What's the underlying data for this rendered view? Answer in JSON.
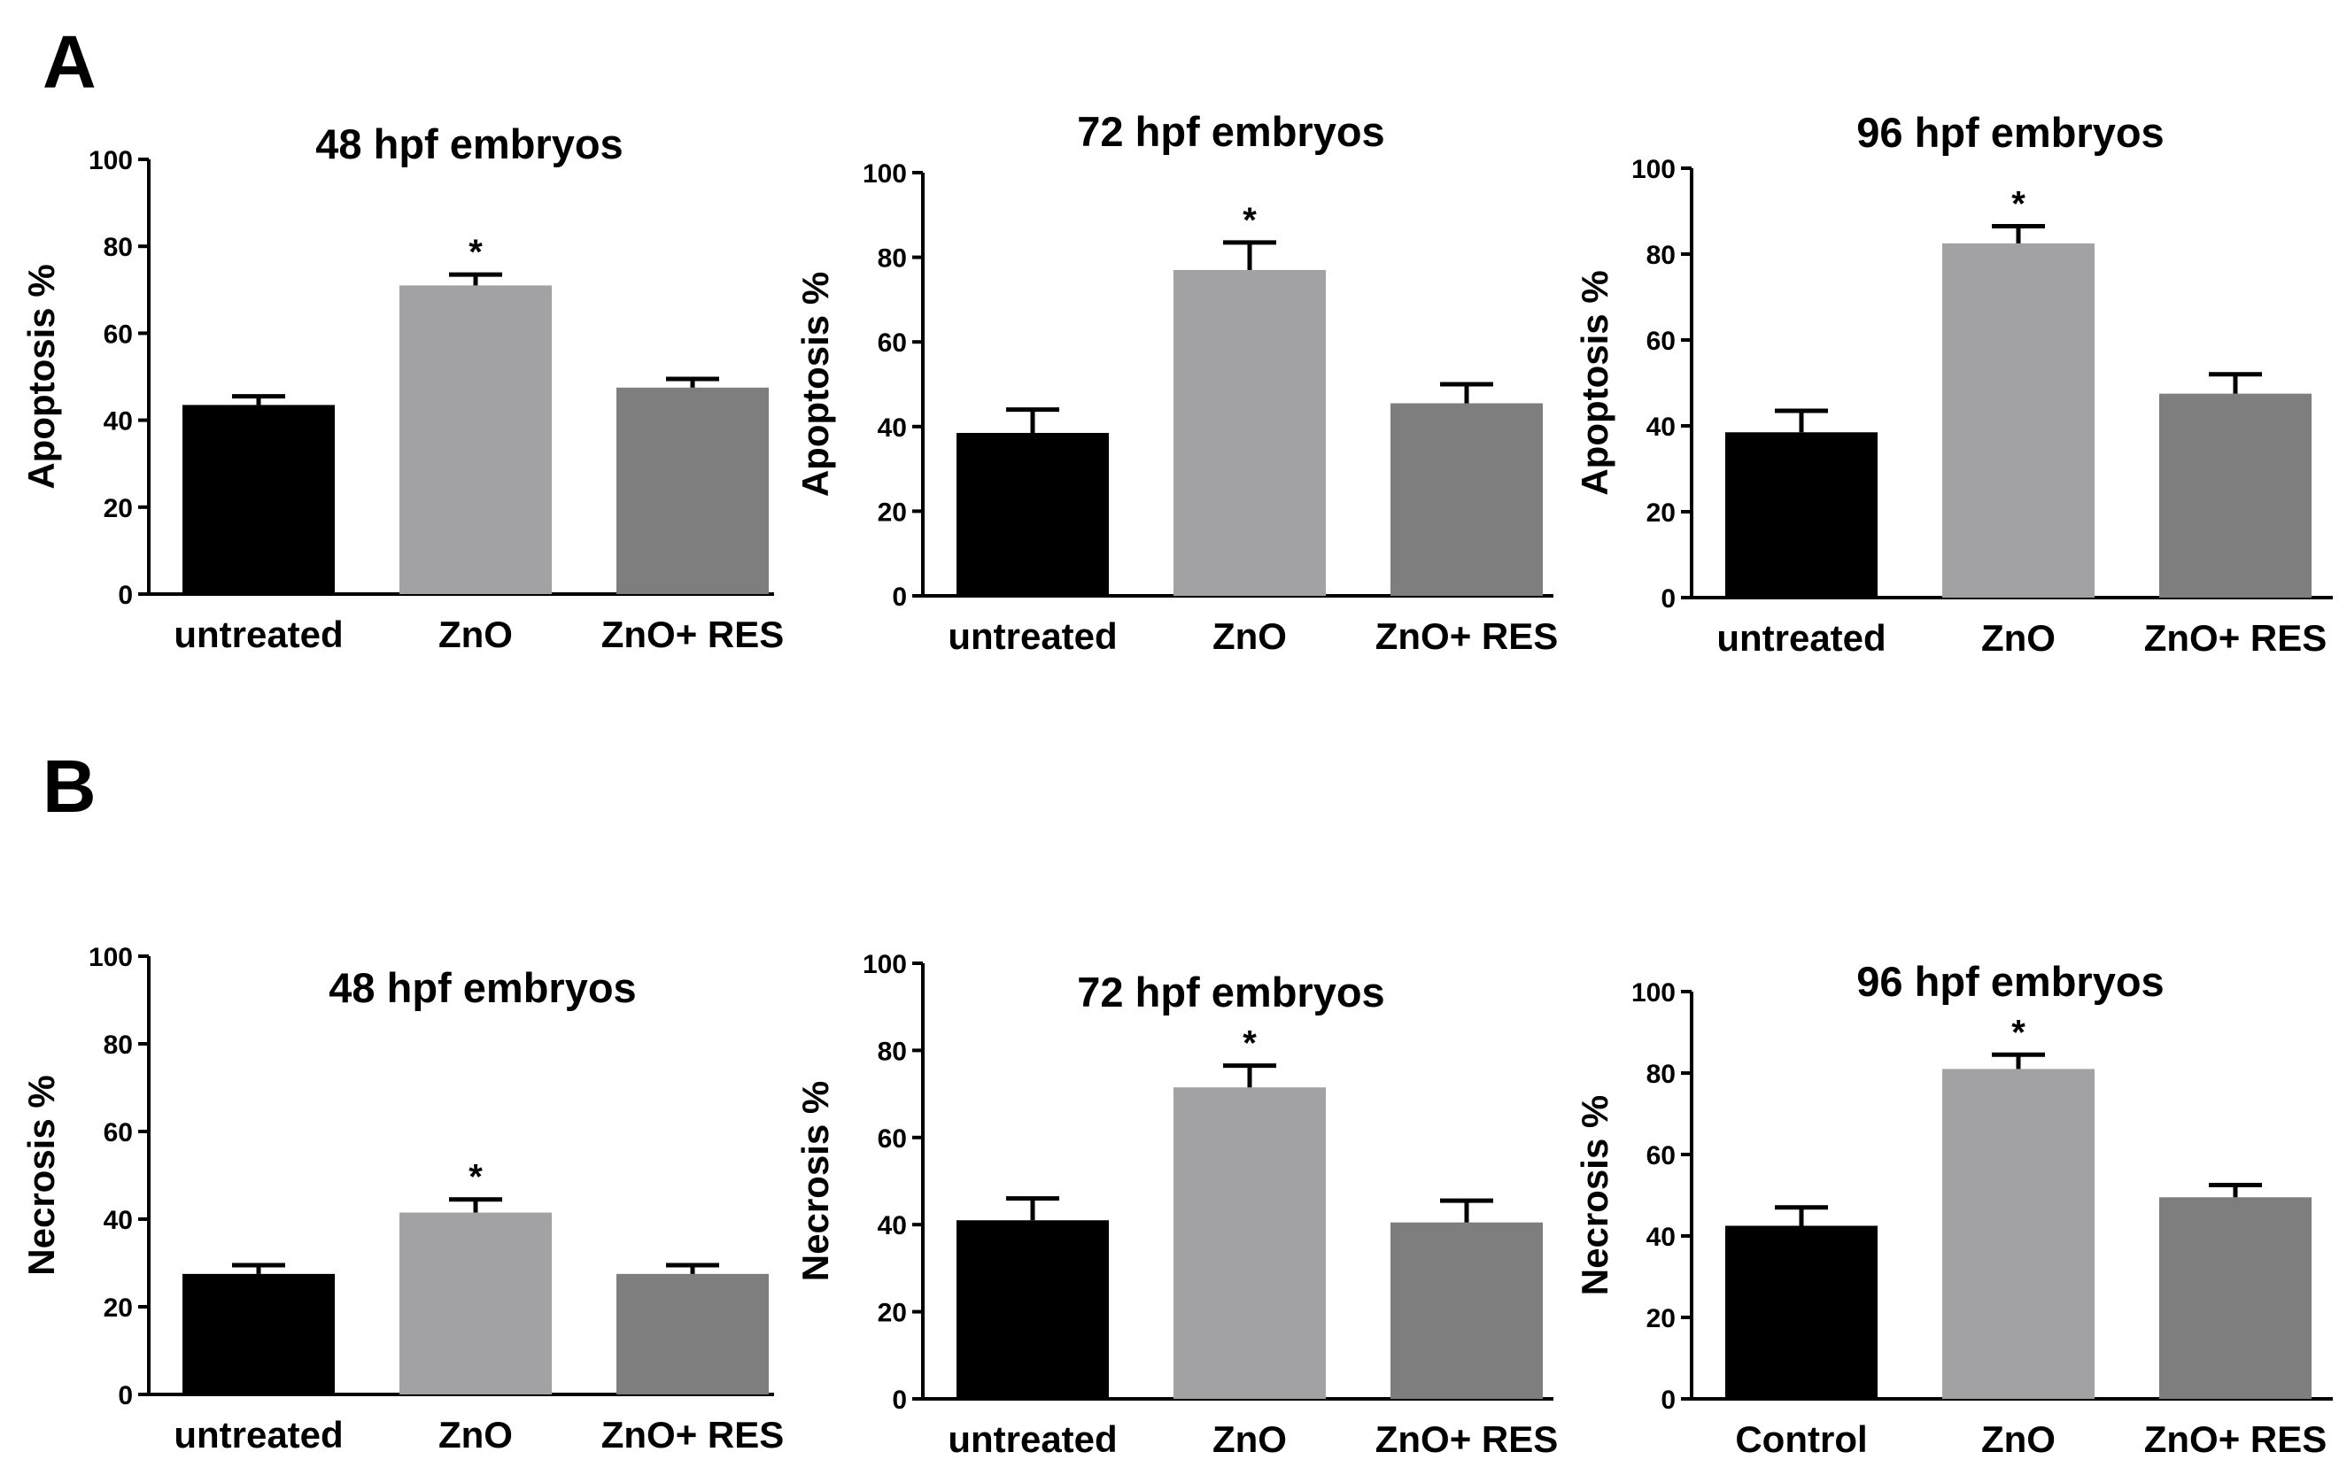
{
  "panel_labels": {
    "a": "A",
    "b": "B"
  },
  "colors": {
    "untreated": "#000000",
    "zno": "#a2a2a4",
    "zno_res": "#7e7e7e"
  },
  "chart_data": [
    {
      "type": "bar",
      "panel": "A",
      "title": "48 hpf embryos",
      "ylabel": "Apoptosis %",
      "xlabel": "",
      "categories": [
        "untreated",
        "ZnO",
        "ZnO+ RES"
      ],
      "values": [
        43.5,
        71,
        47.5
      ],
      "errors": [
        2,
        2.5,
        2
      ],
      "significance": [
        "",
        "*",
        ""
      ],
      "ylim": [
        0,
        100
      ],
      "yticks": [
        0,
        20,
        40,
        60,
        80,
        100
      ]
    },
    {
      "type": "bar",
      "panel": "A",
      "title": "72 hpf embryos",
      "ylabel": "Apoptosis %",
      "xlabel": "",
      "categories": [
        "untreated",
        "ZnO",
        "ZnO+ RES"
      ],
      "values": [
        38.5,
        77,
        45.5
      ],
      "errors": [
        5.5,
        6.5,
        4.5
      ],
      "significance": [
        "",
        "*",
        ""
      ],
      "ylim": [
        0,
        100
      ],
      "yticks": [
        0,
        20,
        40,
        60,
        80,
        100
      ]
    },
    {
      "type": "bar",
      "panel": "A",
      "title": "96 hpf embryos",
      "ylabel": "Apoptosis %",
      "xlabel": "",
      "categories": [
        "untreated",
        "ZnO",
        "ZnO+ RES"
      ],
      "values": [
        38.5,
        82.5,
        47.5
      ],
      "errors": [
        5,
        4,
        4.5
      ],
      "significance": [
        "",
        "*",
        ""
      ],
      "ylim": [
        0,
        100
      ],
      "yticks": [
        0,
        20,
        40,
        60,
        80,
        100
      ]
    },
    {
      "type": "bar",
      "panel": "B",
      "title": "48 hpf embryos",
      "ylabel": "Necrosis %",
      "xlabel": "",
      "categories": [
        "untreated",
        "ZnO",
        "ZnO+ RES"
      ],
      "values": [
        27.5,
        41.5,
        27.5
      ],
      "errors": [
        2,
        3,
        2
      ],
      "significance": [
        "",
        "*",
        ""
      ],
      "ylim": [
        0,
        100
      ],
      "yticks": [
        0,
        20,
        40,
        60,
        80,
        100
      ]
    },
    {
      "type": "bar",
      "panel": "B",
      "title": "72 hpf embryos",
      "ylabel": "Necrosis %",
      "xlabel": "",
      "categories": [
        "untreated",
        "ZnO",
        "ZnO+ RES"
      ],
      "values": [
        41,
        71.5,
        40.5
      ],
      "errors": [
        5,
        5,
        5
      ],
      "significance": [
        "",
        "*",
        ""
      ],
      "ylim": [
        0,
        100
      ],
      "yticks": [
        0,
        20,
        40,
        60,
        80,
        100
      ]
    },
    {
      "type": "bar",
      "panel": "B",
      "title": "96 hpf embryos",
      "ylabel": "Necrosis %",
      "xlabel": "",
      "categories": [
        "Control",
        "ZnO",
        "ZnO+ RES"
      ],
      "values": [
        42.5,
        81,
        49.5
      ],
      "errors": [
        4.5,
        3.5,
        3
      ],
      "significance": [
        "",
        "*",
        ""
      ],
      "ylim": [
        0,
        100
      ],
      "yticks": [
        0,
        20,
        40,
        60,
        80,
        100
      ]
    }
  ]
}
